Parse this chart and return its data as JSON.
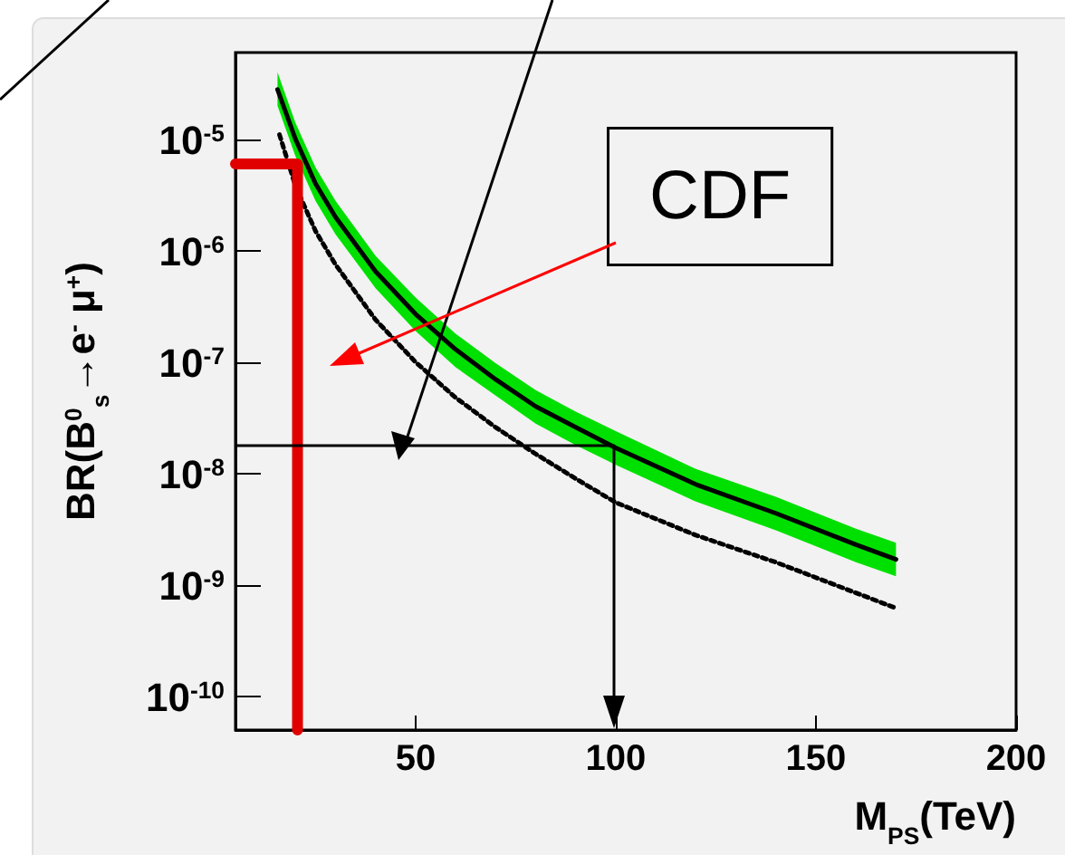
{
  "chart_data": {
    "type": "line",
    "xlabel": "M$_{PS}$(TeV)",
    "ylabel": "BR(B$^{0}$$_{s}$→e$^{-}$ μ$^{+}$)",
    "log": "y",
    "xlim": [
      5,
      200
    ],
    "ylim": [
      5e-11,
      6e-05
    ],
    "xticks": [
      50,
      100,
      150,
      200
    ],
    "yticks": [
      {
        "value": 1e-10,
        "label": "10$^{-10}$"
      },
      {
        "value": 1e-09,
        "label": "10$^{-9}$"
      },
      {
        "value": 1e-08,
        "label": "10$^{-8}$"
      },
      {
        "value": 1e-07,
        "label": "10$^{-7}$"
      },
      {
        "value": 1e-06,
        "label": "10$^{-6}$"
      },
      {
        "value": 1e-05,
        "label": "10$^{-5}$"
      }
    ],
    "annotations": [
      "CDF"
    ],
    "series": [
      {
        "color": "#000000",
        "line_style": "solid",
        "x": [
          15.5,
          20,
          25,
          30,
          40,
          50,
          60,
          70,
          80,
          90,
          100,
          120,
          140,
          160,
          170
        ],
        "values": [
          2.8e-05,
          1e-05,
          4e-06,
          2e-06,
          6.5e-07,
          2.7e-07,
          1.3e-07,
          7e-08,
          4e-08,
          2.6e-08,
          1.7e-08,
          8e-09,
          4.4e-09,
          2.3e-09,
          1.7e-09
        ],
        "lower": [
          2e-05,
          7e-06,
          2.8e-06,
          1.4e-06,
          4.6e-07,
          1.9e-07,
          9e-08,
          5e-08,
          2.8e-08,
          1.8e-08,
          1.2e-08,
          5.6e-09,
          3.1e-09,
          1.6e-09,
          1.2e-09
        ],
        "upper": [
          4e-05,
          1.4e-05,
          5.6e-06,
          2.8e-06,
          9e-07,
          3.8e-07,
          1.8e-07,
          9.8e-08,
          5.6e-08,
          3.6e-08,
          2.4e-08,
          1.1e-08,
          6.2e-09,
          3.2e-09,
          2.4e-09
        ]
      },
      {
        "color": "#000000",
        "line_style": "dotted",
        "x": [
          16,
          20,
          25,
          30,
          40,
          50,
          60,
          70,
          80,
          90,
          100,
          120,
          140,
          160,
          170
        ],
        "values": [
          1.1e-05,
          3.8e-06,
          1.5e-06,
          7.5e-07,
          2.4e-07,
          1e-07,
          4.8e-08,
          2.6e-08,
          1.5e-08,
          9e-09,
          5.5e-09,
          2.8e-09,
          1.6e-09,
          8.5e-10,
          6.2e-10
        ]
      },
      {
        "color": "#e00000",
        "line_style": "solid",
        "x": [
          5,
          20.5,
          20.5
        ],
        "values": [
          6e-06,
          6e-06,
          5e-11
        ]
      }
    ]
  }
}
